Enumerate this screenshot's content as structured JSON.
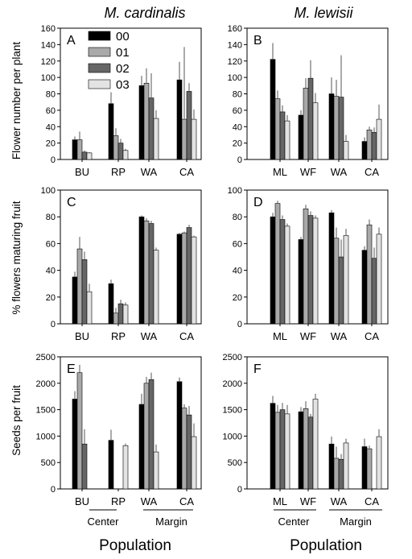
{
  "figure": {
    "col_titles": [
      "M. cardinalis",
      "M. lewisii"
    ],
    "row_ylabels": [
      "Flower number per plant",
      "% flowers maturing fruit",
      "Seeds per fruit"
    ],
    "xlabel": "Population",
    "group_labels": {
      "left": [
        "Center",
        "Margin"
      ],
      "right": [
        "Center",
        "Margin"
      ]
    }
  },
  "legend": {
    "placement": "top-left of panel A",
    "entries": [
      "00",
      "01",
      "02",
      "03"
    ]
  },
  "colors": {
    "00": "#000000",
    "01": "#a9a9a9",
    "02": "#666666",
    "03": "#e3e3e3"
  },
  "chart_data": [
    {
      "panel": "A",
      "type": "bar",
      "row": 0,
      "col": 0,
      "categories": [
        "BU",
        "RP",
        "WA",
        "CA"
      ],
      "ylim": [
        0,
        160
      ],
      "yticks": [
        0,
        20,
        40,
        60,
        80,
        100,
        120,
        140,
        160
      ],
      "series": [
        {
          "name": "00",
          "values": [
            24,
            68,
            90,
            97
          ],
          "err": [
            4,
            14,
            12,
            22
          ]
        },
        {
          "name": "01",
          "values": [
            24,
            29,
            93,
            49
          ],
          "err": [
            10,
            9,
            18,
            88
          ]
        },
        {
          "name": "02",
          "values": [
            9,
            20,
            75,
            83
          ],
          "err": [
            2,
            5,
            30,
            10
          ]
        },
        {
          "name": "03",
          "values": [
            8,
            11,
            50,
            49
          ],
          "err": [
            1,
            2,
            10,
            12
          ]
        }
      ]
    },
    {
      "panel": "B",
      "type": "bar",
      "row": 0,
      "col": 1,
      "categories": [
        "ML",
        "WF",
        "WA",
        "CA"
      ],
      "ylim": [
        0,
        160
      ],
      "yticks": [
        0,
        20,
        40,
        60,
        80,
        100,
        120,
        140,
        160
      ],
      "series": [
        {
          "name": "00",
          "values": [
            122,
            54,
            80,
            22
          ],
          "err": [
            20,
            6,
            20,
            5
          ]
        },
        {
          "name": "01",
          "values": [
            74,
            87,
            77,
            36
          ],
          "err": [
            10,
            12,
            20,
            4
          ]
        },
        {
          "name": "02",
          "values": [
            58,
            99,
            76,
            33
          ],
          "err": [
            8,
            22,
            51,
            6
          ]
        },
        {
          "name": "03",
          "values": [
            47,
            69,
            22,
            49
          ],
          "err": [
            7,
            12,
            8,
            18
          ]
        }
      ]
    },
    {
      "panel": "C",
      "type": "bar",
      "row": 1,
      "col": 0,
      "categories": [
        "BU",
        "RP",
        "WA",
        "CA"
      ],
      "ylim": [
        0,
        100
      ],
      "yticks": [
        0,
        20,
        40,
        60,
        80,
        100
      ],
      "series": [
        {
          "name": "00",
          "values": [
            35,
            30,
            80,
            67
          ],
          "err": [
            4,
            3,
            1,
            1
          ]
        },
        {
          "name": "01",
          "values": [
            56,
            8,
            77,
            68
          ],
          "err": [
            9,
            4,
            2,
            1
          ]
        },
        {
          "name": "02",
          "values": [
            48,
            15,
            75,
            72
          ],
          "err": [
            6,
            3,
            2,
            2
          ]
        },
        {
          "name": "03",
          "values": [
            24,
            14,
            55,
            65
          ],
          "err": [
            6,
            2,
            2,
            1
          ]
        }
      ]
    },
    {
      "panel": "D",
      "type": "bar",
      "row": 1,
      "col": 1,
      "categories": [
        "ML",
        "WF",
        "WA",
        "CA"
      ],
      "ylim": [
        0,
        100
      ],
      "yticks": [
        0,
        20,
        40,
        60,
        80,
        100
      ],
      "series": [
        {
          "name": "00",
          "values": [
            80,
            63,
            83,
            55
          ],
          "err": [
            3,
            2,
            2,
            3
          ]
        },
        {
          "name": "01",
          "values": [
            90,
            86,
            64,
            74
          ],
          "err": [
            2,
            3,
            8,
            4
          ]
        },
        {
          "name": "02",
          "values": [
            78,
            81,
            50,
            49
          ],
          "err": [
            3,
            3,
            13,
            8
          ]
        },
        {
          "name": "03",
          "values": [
            73,
            79,
            66,
            67
          ],
          "err": [
            2,
            2,
            5,
            5
          ]
        }
      ]
    },
    {
      "panel": "E",
      "type": "bar",
      "row": 2,
      "col": 0,
      "categories": [
        "BU",
        "RP",
        "WA",
        "CA"
      ],
      "ylim": [
        0,
        2500
      ],
      "yticks": [
        0,
        500,
        1000,
        1500,
        2000,
        2500
      ],
      "series": [
        {
          "name": "00",
          "values": [
            1700,
            920,
            1600,
            2030
          ],
          "err": [
            150,
            200,
            200,
            80
          ]
        },
        {
          "name": "01",
          "values": [
            2200,
            null,
            2000,
            1530
          ],
          "err": [
            150,
            null,
            120,
            70
          ]
        },
        {
          "name": "02",
          "values": [
            850,
            null,
            2070,
            1400
          ],
          "err": [
            280,
            null,
            130,
            170
          ]
        },
        {
          "name": "03",
          "values": [
            null,
            820,
            700,
            990
          ],
          "err": [
            null,
            40,
            140,
            250
          ]
        }
      ]
    },
    {
      "panel": "F",
      "type": "bar",
      "row": 2,
      "col": 1,
      "categories": [
        "ML",
        "WF",
        "WA",
        "CA"
      ],
      "ylim": [
        0,
        2500
      ],
      "yticks": [
        0,
        500,
        1000,
        1500,
        2000,
        2500
      ],
      "series": [
        {
          "name": "00",
          "values": [
            1620,
            1460,
            850,
            800
          ],
          "err": [
            140,
            90,
            140,
            150
          ]
        },
        {
          "name": "01",
          "values": [
            1450,
            1520,
            580,
            760
          ],
          "err": [
            140,
            140,
            220,
            60
          ]
        },
        {
          "name": "02",
          "values": [
            1500,
            1360,
            560,
            null
          ],
          "err": [
            130,
            60,
            100,
            null
          ]
        },
        {
          "name": "03",
          "values": [
            1420,
            1700,
            870,
            990
          ],
          "err": [
            170,
            100,
            80,
            140
          ]
        }
      ]
    }
  ]
}
